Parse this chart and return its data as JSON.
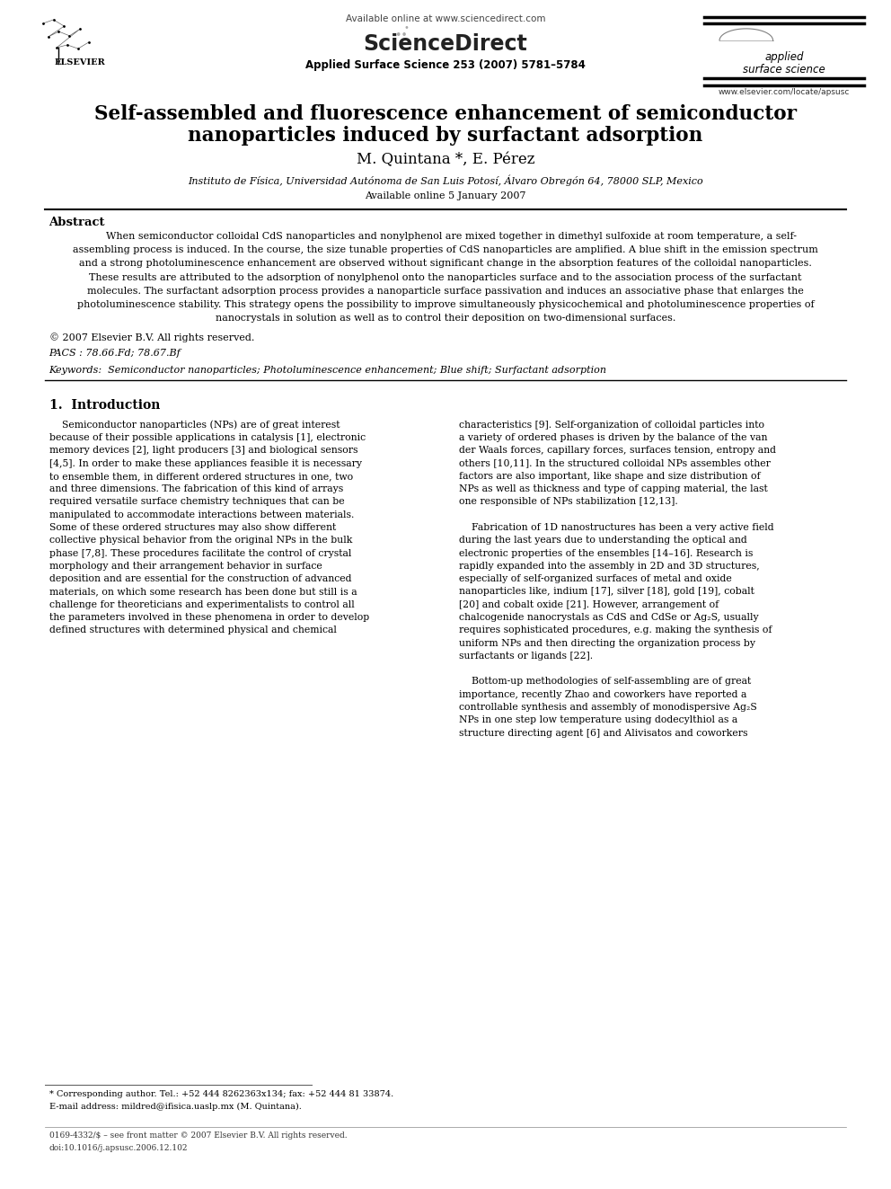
{
  "bg_color": "#ffffff",
  "page_width": 9.92,
  "page_height": 13.23,
  "header_available_online": "Available online at www.sciencedirect.com",
  "header_journal_info": "Applied Surface Science 253 (2007) 5781–5784",
  "header_journal_name_line1": "applied",
  "header_journal_name_line2": "surface science",
  "header_website": "www.elsevier.com/locate/apsusc",
  "header_elsevier_label": "ELSEVIER",
  "header_sciencedirect": "ScienceDirect",
  "title_line1": "Self-assembled and fluorescence enhancement of semiconductor",
  "title_line2": "nanoparticles induced by surfactant adsorption",
  "authors": "M. Quintana *, E. Pérez",
  "affiliation": "Instituto de Física, Universidad Autónoma de San Luis Potosí, Álvaro Obregón 64, 78000 SLP, Mexico",
  "available_online_paper": "Available online 5 January 2007",
  "abstract_heading": "Abstract",
  "abstract_lines": [
    "When semiconductor colloidal CdS nanoparticles and nonylphenol are mixed together in dimethyl sulfoxide at room temperature, a self-",
    "assembling process is induced. In the course, the size tunable properties of CdS nanoparticles are amplified. A blue shift in the emission spectrum",
    "and a strong photoluminescence enhancement are observed without significant change in the absorption features of the colloidal nanoparticles.",
    "These results are attributed to the adsorption of nonylphenol onto the nanoparticles surface and to the association process of the surfactant",
    "molecules. The surfactant adsorption process provides a nanoparticle surface passivation and induces an associative phase that enlarges the",
    "photoluminescence stability. This strategy opens the possibility to improve simultaneously physicochemical and photoluminescence properties of",
    "nanocrystals in solution as well as to control their deposition on two-dimensional surfaces."
  ],
  "copyright": "© 2007 Elsevier B.V. All rights reserved.",
  "pacs": "PACS : 78.66.Fd; 78.67.Bf",
  "keywords": "Keywords:  Semiconductor nanoparticles; Photoluminescence enhancement; Blue shift; Surfactant adsorption",
  "section1_heading": "1.  Introduction",
  "intro_left_lines": [
    "    Semiconductor nanoparticles (NPs) are of great interest",
    "because of their possible applications in catalysis [1], electronic",
    "memory devices [2], light producers [3] and biological sensors",
    "[4,5]. In order to make these appliances feasible it is necessary",
    "to ensemble them, in different ordered structures in one, two",
    "and three dimensions. The fabrication of this kind of arrays",
    "required versatile surface chemistry techniques that can be",
    "manipulated to accommodate interactions between materials.",
    "Some of these ordered structures may also show different",
    "collective physical behavior from the original NPs in the bulk",
    "phase [7,8]. These procedures facilitate the control of crystal",
    "morphology and their arrangement behavior in surface",
    "deposition and are essential for the construction of advanced",
    "materials, on which some research has been done but still is a",
    "challenge for theoreticians and experimentalists to control all",
    "the parameters involved in these phenomena in order to develop",
    "defined structures with determined physical and chemical"
  ],
  "intro_right_lines": [
    "characteristics [9]. Self-organization of colloidal particles into",
    "a variety of ordered phases is driven by the balance of the van",
    "der Waals forces, capillary forces, surfaces tension, entropy and",
    "others [10,11]. In the structured colloidal NPs assembles other",
    "factors are also important, like shape and size distribution of",
    "NPs as well as thickness and type of capping material, the last",
    "one responsible of NPs stabilization [12,13].",
    "",
    "    Fabrication of 1D nanostructures has been a very active field",
    "during the last years due to understanding the optical and",
    "electronic properties of the ensembles [14–16]. Research is",
    "rapidly expanded into the assembly in 2D and 3D structures,",
    "especially of self-organized surfaces of metal and oxide",
    "nanoparticles like, indium [17], silver [18], gold [19], cobalt",
    "[20] and cobalt oxide [21]. However, arrangement of",
    "chalcogenide nanocrystals as CdS and CdSe or Ag₂S, usually",
    "requires sophisticated procedures, e.g. making the synthesis of",
    "uniform NPs and then directing the organization process by",
    "surfactants or ligands [22].",
    "",
    "    Bottom-up methodologies of self-assembling are of great",
    "importance, recently Zhao and coworkers have reported a",
    "controllable synthesis and assembly of monodispersive Ag₂S",
    "NPs in one step low temperature using dodecylthiol as a",
    "structure directing agent [6] and Alivisatos and coworkers"
  ],
  "footnote_star": "* Corresponding author. Tel.: +52 444 8262363x134; fax: +52 444 81 33874.",
  "footnote_email": "E-mail address: mildred@ifisica.uaslp.mx (M. Quintana).",
  "footer_issn": "0169-4332/$ – see front matter © 2007 Elsevier B.V. All rights reserved.",
  "footer_doi": "doi:10.1016/j.apsusc.2006.12.102"
}
